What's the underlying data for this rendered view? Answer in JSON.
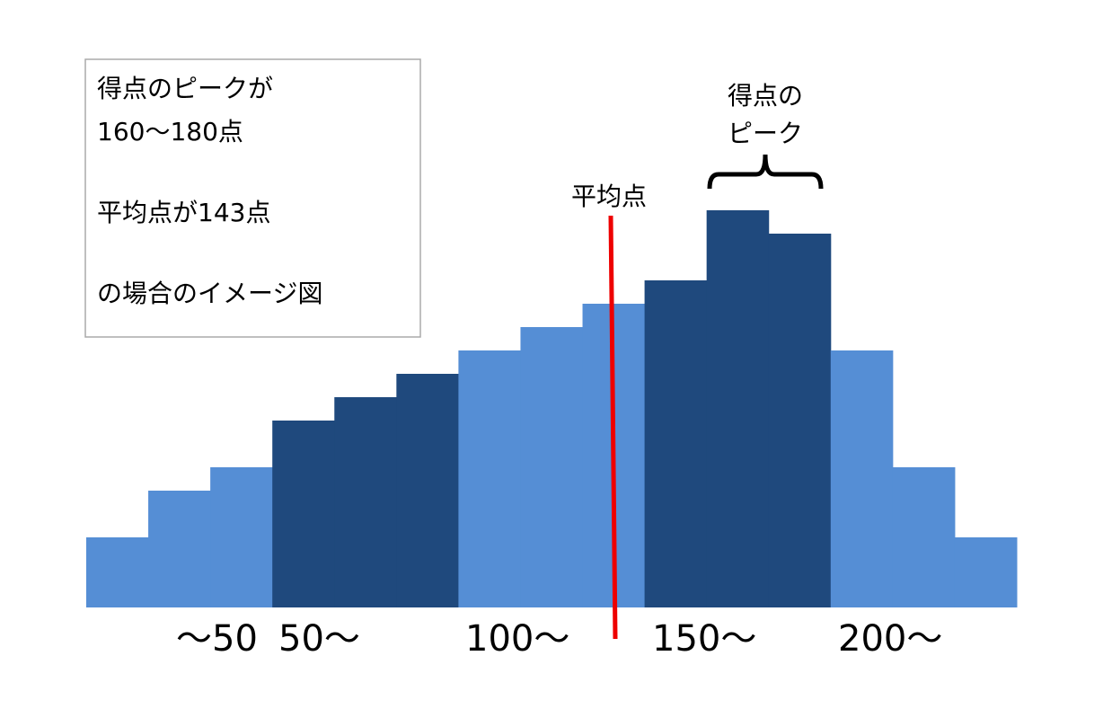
{
  "chart_data": {
    "type": "bar",
    "values": [
      3,
      5,
      6,
      8,
      9,
      10,
      11,
      12,
      13,
      14,
      17,
      16,
      11,
      6,
      3
    ],
    "colors": [
      "#558ed5",
      "#558ed5",
      "#558ed5",
      "#1f497d",
      "#1f497d",
      "#1f497d",
      "#558ed5",
      "#558ed5",
      "#558ed5",
      "#1f497d",
      "#1f497d",
      "#1f497d",
      "#558ed5",
      "#558ed5",
      "#558ed5"
    ],
    "ylim": [
      0,
      17
    ],
    "bin_labels": [
      "～50",
      "50～",
      "100～",
      "150～",
      "200～"
    ],
    "mean_label": "平均点",
    "peak_label": [
      "得点の",
      "ピーク"
    ],
    "note": [
      "得点のピークが",
      "160～180点",
      "平均点が143点",
      "の場合のイメージ図"
    ]
  }
}
